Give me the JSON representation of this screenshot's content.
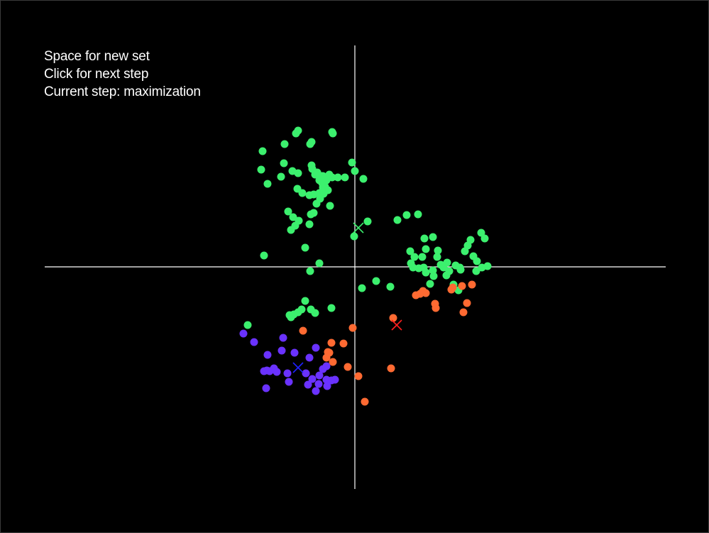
{
  "hud": {
    "line1": "Space for new set",
    "line2": "Click for next step",
    "line3": "Current step: maximization"
  },
  "colors": {
    "background": "#000000",
    "axis": "#ffffff",
    "green": "#3cf06e",
    "orange": "#ff6a32",
    "purple": "#6a32ff",
    "centroid_green": "#3cf06e",
    "centroid_red": "#ff1e1e",
    "centroid_blue": "#2020ff"
  },
  "clusters": [
    {
      "name": "green",
      "color": "#3cf06e",
      "centroid": [
        5,
        55
      ],
      "centroid_color": "#3cf06e",
      "points": [
        [
          -130,
          163
        ],
        [
          -99,
          173
        ],
        [
          -83,
          188
        ],
        [
          -80,
          192
        ],
        [
          -61,
          176
        ],
        [
          -63,
          173
        ],
        [
          -32,
          190
        ],
        [
          -31,
          188
        ],
        [
          -100,
          146
        ],
        [
          -88,
          135
        ],
        [
          -104,
          127
        ],
        [
          -80,
          132
        ],
        [
          -81,
          110
        ],
        [
          -74,
          104
        ],
        [
          -64,
          101
        ],
        [
          -58,
          102
        ],
        [
          -51,
          129
        ],
        [
          -45,
          128
        ],
        [
          -61,
          143
        ],
        [
          -53,
          133
        ],
        [
          -47,
          128
        ],
        [
          -39,
          126
        ],
        [
          -32,
          126
        ],
        [
          -24,
          126
        ],
        [
          -14,
          126
        ],
        [
          -4,
          147
        ],
        [
          0,
          135
        ],
        [
          12,
          124
        ],
        [
          -60,
          138
        ],
        [
          -56,
          130
        ],
        [
          -50,
          122
        ],
        [
          -46,
          118
        ],
        [
          -42,
          113
        ],
        [
          -38,
          108
        ],
        [
          -44,
          103
        ],
        [
          -49,
          96
        ],
        [
          -54,
          89
        ],
        [
          -35,
          86
        ],
        [
          -94,
          78
        ],
        [
          -87,
          70
        ],
        [
          -79,
          65
        ],
        [
          -64,
          60
        ],
        [
          -58,
          76
        ],
        [
          -62,
          74
        ],
        [
          -84,
          58
        ],
        [
          -132,
          137
        ],
        [
          -123,
          117
        ],
        [
          -36,
          130
        ],
        [
          -90,
          52
        ],
        [
          -50,
          104
        ],
        [
          -45,
          112
        ],
        [
          -40,
          122
        ],
        [
          -70,
          27
        ],
        [
          -128,
          16
        ],
        [
          -50,
          5
        ],
        [
          -63,
          -6
        ],
        [
          -1,
          43
        ],
        [
          18,
          64
        ],
        [
          60,
          66
        ],
        [
          73,
          73
        ],
        [
          89,
          74
        ],
        [
          98,
          40
        ],
        [
          110,
          42
        ],
        [
          100,
          25
        ],
        [
          95,
          14
        ],
        [
          78,
          22
        ],
        [
          84,
          14
        ],
        [
          79,
          5
        ],
        [
          82,
          -1
        ],
        [
          90,
          -2
        ],
        [
          100,
          -8
        ],
        [
          110,
          -5
        ],
        [
          117,
          23
        ],
        [
          121,
          3
        ],
        [
          125,
          -1
        ],
        [
          133,
          -6
        ],
        [
          142,
          2
        ],
        [
          148,
          -1
        ],
        [
          155,
          22
        ],
        [
          163,
          38
        ],
        [
          159,
          30
        ],
        [
          167,
          15
        ],
        [
          172,
          8
        ],
        [
          178,
          48
        ],
        [
          183,
          40
        ],
        [
          179,
          -1
        ],
        [
          187,
          1
        ],
        [
          171,
          -6
        ],
        [
          149,
          -4
        ],
        [
          130,
          6
        ],
        [
          116,
          14
        ],
        [
          106,
          -24
        ],
        [
          97,
          -1
        ],
        [
          139,
          -25
        ],
        [
          146,
          -33
        ],
        [
          129,
          -12
        ],
        [
          111,
          -13
        ],
        [
          30,
          -20
        ],
        [
          50,
          -28
        ],
        [
          10,
          -30
        ],
        [
          -70,
          -48
        ],
        [
          -75,
          -60
        ],
        [
          -62,
          -60
        ],
        [
          -80,
          -64
        ],
        [
          -86,
          -67
        ],
        [
          -92,
          -68
        ],
        [
          -56,
          -65
        ],
        [
          -33,
          -58
        ],
        [
          -151,
          -82
        ],
        [
          -90,
          -71
        ]
      ]
    },
    {
      "name": "orange",
      "color": "#ff6a32",
      "centroid": [
        59,
        -82
      ],
      "centroid_color": "#ff1e1e",
      "points": [
        [
          165,
          -25
        ],
        [
          151,
          -27
        ],
        [
          138,
          -29
        ],
        [
          136,
          -32
        ],
        [
          158,
          -51
        ],
        [
          153,
          -64
        ],
        [
          113,
          -52
        ],
        [
          114,
          -58
        ],
        [
          100,
          -37
        ],
        [
          92,
          -38
        ],
        [
          86,
          -40
        ],
        [
          96,
          -34
        ],
        [
          54,
          -72
        ],
        [
          -3,
          -86
        ],
        [
          -33,
          -107
        ],
        [
          -16,
          -108
        ],
        [
          -38,
          -120
        ],
        [
          -36,
          -121
        ],
        [
          -40,
          -128
        ],
        [
          -31,
          -134
        ],
        [
          -10,
          -141
        ],
        [
          5,
          -154
        ],
        [
          51,
          -143
        ],
        [
          14,
          -190
        ],
        [
          -73,
          -90
        ]
      ]
    },
    {
      "name": "purple",
      "color": "#6a32ff",
      "centroid": [
        -80,
        -142
      ],
      "centroid_color": "#2020ff",
      "points": [
        [
          -157,
          -94
        ],
        [
          -142,
          -106
        ],
        [
          -101,
          -100
        ],
        [
          -123,
          -124
        ],
        [
          -103,
          -118
        ],
        [
          -85,
          -121
        ],
        [
          -55,
          -114
        ],
        [
          -64,
          -128
        ],
        [
          -40,
          -140
        ],
        [
          -45,
          -144
        ],
        [
          -50,
          -153
        ],
        [
          -120,
          -147
        ],
        [
          -128,
          -147
        ],
        [
          -110,
          -148
        ],
        [
          -95,
          -150
        ],
        [
          -69,
          -150
        ],
        [
          -60,
          -158
        ],
        [
          -40,
          -159
        ],
        [
          -33,
          -160
        ],
        [
          -28,
          -159
        ],
        [
          -39,
          -168
        ],
        [
          -51,
          -165
        ],
        [
          -93,
          -162
        ],
        [
          -66,
          -166
        ],
        [
          -55,
          -175
        ],
        [
          -125,
          -171
        ],
        [
          -124,
          -146
        ],
        [
          -114,
          -143
        ]
      ]
    }
  ]
}
